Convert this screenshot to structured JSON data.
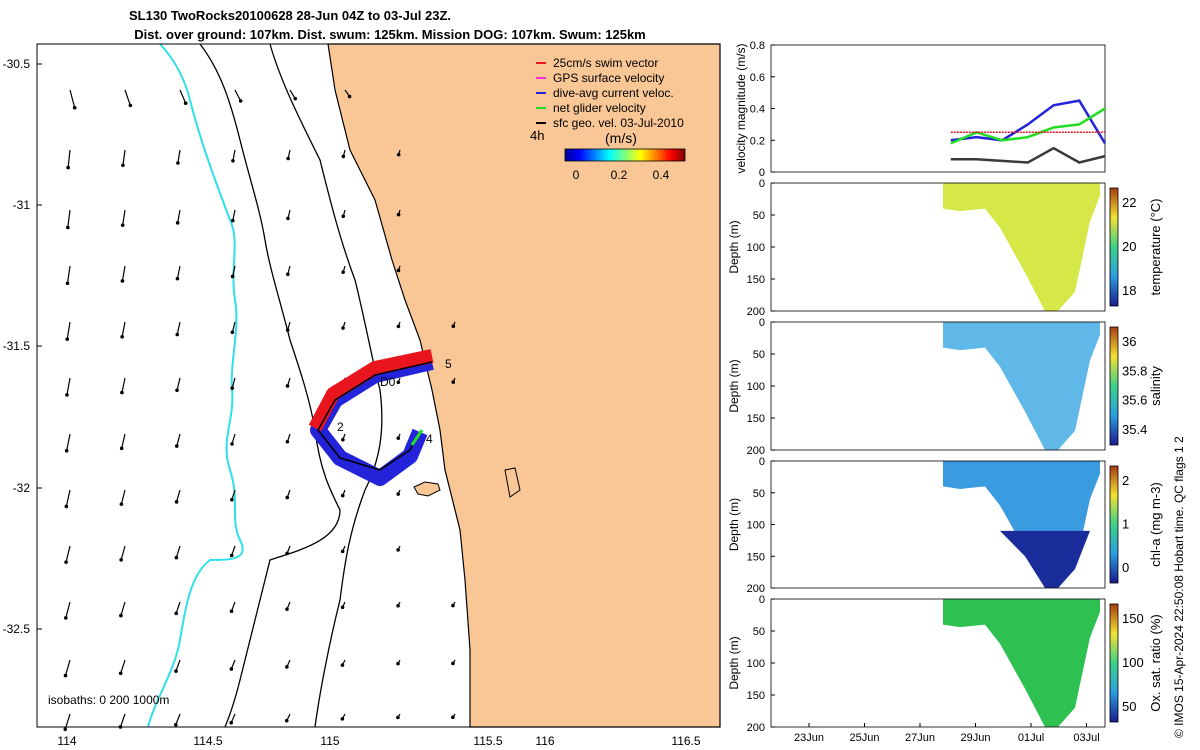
{
  "header": {
    "title_line1": "SL130 TwoRocks20100628 28-Jun 04Z to 03-Jul 23Z.",
    "title_line2": "Dist. over ground: 107km. Dist. swum: 125km. Mission DOG: 107km. Swum: 125km"
  },
  "footer_stamp": "© IMOS 15-Apr-2024 22:50:08 Hobart time. QC flags 1 2",
  "map": {
    "x_ticks": [
      "114",
      "114.5",
      "115",
      "115.5",
      "116",
      "116.5"
    ],
    "y_ticks": [
      "-30.5",
      "-31",
      "-31.5",
      "-32",
      "-32.5"
    ],
    "legend": [
      {
        "label": "25cm/s swim vector",
        "color": "#e8141e"
      },
      {
        "label": "GPS surface velocity",
        "color": "#ff2bd6"
      },
      {
        "label": "dive-avg current veloc.",
        "color": "#2323d9"
      },
      {
        "label": "net glider velocity",
        "color": "#22dd22"
      },
      {
        "label": "sfc geo. vel. 03-Jul-2010",
        "color": "#000000"
      }
    ],
    "colorbar_label": "(m/s)",
    "colorbar_ticks": [
      "0",
      "0.2",
      "0.4"
    ],
    "colorbar_side_label": "4h",
    "isobath_text": "isobaths: 0   200  1000m",
    "track_labels": [
      "5",
      "4",
      "2",
      "D0"
    ],
    "land_color": "#f9c796",
    "isobath_color_200": "#30e0e8"
  },
  "time_axis": [
    "23Jun",
    "25Jun",
    "27Jun",
    "29Jun",
    "01Jul",
    "03Jul"
  ],
  "panels": [
    {
      "ylabel": "velocity magnitude (m/s)",
      "yticks": [
        "0",
        "0.2",
        "0.4",
        "0.6",
        "0.8"
      ]
    },
    {
      "ylabel": "Depth (m)",
      "yticks": [
        "0",
        "50",
        "100",
        "150",
        "200"
      ],
      "cbar_label": "temperature (°C)",
      "cbar_ticks": [
        "22",
        "20",
        "18"
      ]
    },
    {
      "ylabel": "Depth (m)",
      "yticks": [
        "0",
        "50",
        "100",
        "150",
        "200"
      ],
      "cbar_label": "salinity",
      "cbar_ticks": [
        "36",
        "35.8",
        "35.6",
        "35.4"
      ]
    },
    {
      "ylabel": "Depth (m)",
      "yticks": [
        "0",
        "50",
        "100",
        "150",
        "200"
      ],
      "cbar_label": "chl-a (mg m-3)",
      "cbar_ticks": [
        "2",
        "1",
        "0"
      ]
    },
    {
      "ylabel": "Depth (m)",
      "yticks": [
        "0",
        "50",
        "100",
        "150",
        "200"
      ],
      "cbar_label": "Ox. sat. ratio (%)",
      "cbar_ticks": [
        "150",
        "100",
        "50"
      ]
    }
  ],
  "chart_data": [
    {
      "type": "line",
      "title": "",
      "ylabel": "velocity magnitude (m/s)",
      "ylim": [
        0,
        0.8
      ],
      "x_range": [
        "2010-06-21",
        "2010-07-04"
      ],
      "series": [
        {
          "color": "#2323d9",
          "x": [
            "2010-06-28",
            "2010-06-29",
            "2010-06-30",
            "2010-07-01",
            "2010-07-02",
            "2010-07-03",
            "2010-07-04"
          ],
          "y": [
            0.2,
            0.22,
            0.2,
            0.3,
            0.42,
            0.45,
            0.18
          ]
        },
        {
          "color": "#22dd22",
          "x": [
            "2010-06-28",
            "2010-06-29",
            "2010-06-30",
            "2010-07-01",
            "2010-07-02",
            "2010-07-03",
            "2010-07-04"
          ],
          "y": [
            0.18,
            0.25,
            0.2,
            0.22,
            0.28,
            0.3,
            0.4
          ]
        },
        {
          "color": "#3a3a3a",
          "x": [
            "2010-06-28",
            "2010-06-29",
            "2010-06-30",
            "2010-07-01",
            "2010-07-02",
            "2010-07-03",
            "2010-07-04"
          ],
          "y": [
            0.08,
            0.08,
            0.07,
            0.06,
            0.15,
            0.06,
            0.1
          ]
        },
        {
          "color": "#e8141e",
          "x": [
            "2010-06-28",
            "2010-07-04"
          ],
          "y": [
            0.25,
            0.25
          ]
        }
      ]
    }
  ]
}
